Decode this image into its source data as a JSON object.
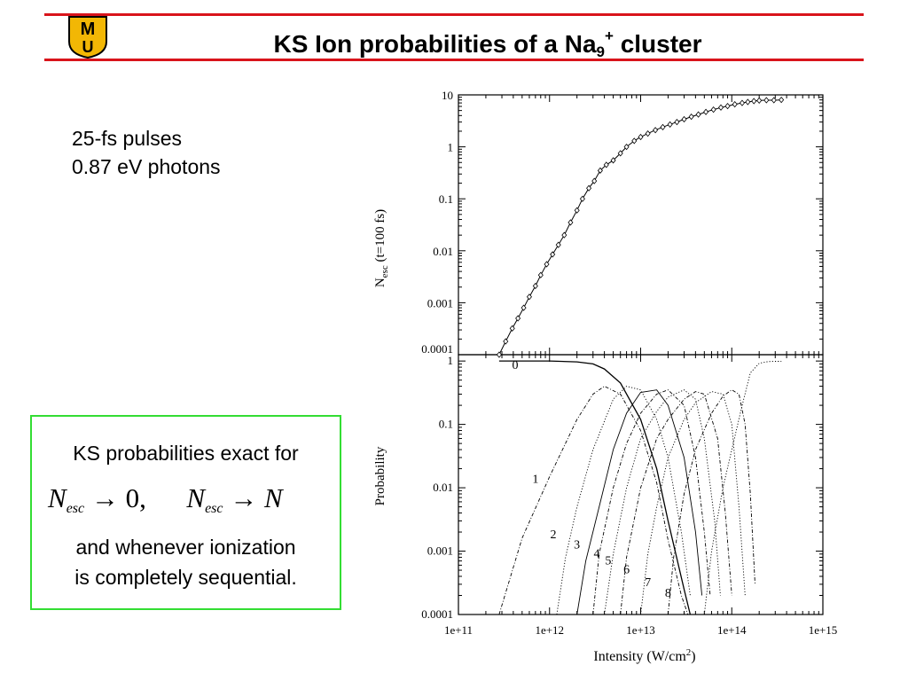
{
  "header": {
    "title_prefix": "KS Ion probabilities of a Na",
    "title_sub": "9",
    "title_sup": "+",
    "title_suffix": " cluster",
    "logo_top": "M",
    "logo_bottom": "U"
  },
  "info": {
    "line1": "25-fs pulses",
    "line2": "0.87 eV photons"
  },
  "note_box": {
    "line1": "KS probabilities exact for",
    "formula": {
      "n1": "N",
      "sub1": "esc",
      "limit1": "0,",
      "n2": "N",
      "sub2": "esc",
      "limit2": "N"
    },
    "line3": "and whenever ionization",
    "line4": "is completely sequential."
  },
  "colors": {
    "accent": "#d9141b",
    "box_border": "#33dd33",
    "logo_gold": "#f2b705"
  },
  "chart_data": [
    {
      "type": "line",
      "panel": "top",
      "xscale": "log",
      "yscale": "log",
      "xlim": [
        100000000000.0,
        1000000000000000.0
      ],
      "ylim": [
        0.0001,
        10
      ],
      "ylabel": "N",
      "ylabel_sub": "esc",
      "ylabel_suffix": " (t=100 fs)",
      "yticks": [
        "10",
        "1",
        "0.1",
        "0.01",
        "0.001",
        "0.0001"
      ],
      "series": [
        {
          "name": "Nesc",
          "markers": "diamond",
          "x": [
            280000000000.0,
            330000000000.0,
            390000000000.0,
            450000000000.0,
            520000000000.0,
            600000000000.0,
            700000000000.0,
            800000000000.0,
            930000000000.0,
            1080000000000.0,
            1250000000000.0,
            1450000000000.0,
            1700000000000.0,
            2000000000000.0,
            2300000000000.0,
            2700000000000.0,
            3100000000000.0,
            3600000000000.0,
            4200000000000.0,
            5000000000000.0,
            6000000000000.0,
            7000000000000.0,
            8500000000000.0,
            10000000000000.0,
            12000000000000.0,
            14500000000000.0,
            17500000000000.0,
            21000000000000.0,
            25000000000000.0,
            30000000000000.0,
            36000000000000.0,
            43000000000000.0,
            52000000000000.0,
            63000000000000.0,
            76000000000000.0,
            90000000000000.0,
            108000000000000.0,
            130000000000000.0,
            150000000000000.0,
            175000000000000.0,
            200000000000000.0,
            240000000000000.0,
            290000000000000.0,
            350000000000000.0
          ],
          "y": [
            0.0001,
            0.00018,
            0.00032,
            0.0005,
            0.0008,
            0.0013,
            0.0021,
            0.0034,
            0.0055,
            0.0085,
            0.013,
            0.02,
            0.035,
            0.06,
            0.1,
            0.16,
            0.22,
            0.35,
            0.45,
            0.55,
            0.75,
            1.0,
            1.3,
            1.55,
            1.8,
            2.1,
            2.4,
            2.7,
            3.0,
            3.4,
            3.8,
            4.2,
            4.7,
            5.2,
            5.7,
            6.1,
            6.6,
            7.0,
            7.3,
            7.6,
            7.8,
            7.9,
            7.9,
            8.0
          ]
        }
      ]
    },
    {
      "type": "line",
      "panel": "bottom",
      "xscale": "log",
      "yscale": "log",
      "xlim": [
        100000000000.0,
        1000000000000000.0
      ],
      "ylim": [
        0.0001,
        1
      ],
      "xlabel": "Intensity (W/cm",
      "xlabel_sup": "2",
      "xlabel_suffix": ")",
      "ylabel": "Probability",
      "yticks": [
        "1",
        "0.1",
        "0.01",
        "0.001",
        "0.0001"
      ],
      "xticks": [
        "1e+11",
        "1e+12",
        "1e+13",
        "1e+14",
        "1e+15"
      ],
      "series": [
        {
          "name": "0",
          "style": "solid",
          "x": [
            280000000000.0,
            1000000000000.0,
            2000000000000.0,
            3000000000000.0,
            4000000000000.0,
            6000000000000.0,
            10000000000000.0,
            15000000000000.0,
            20000000000000.0,
            30000000000000.0,
            35000000000000.0
          ],
          "y": [
            1,
            1,
            0.97,
            0.9,
            0.75,
            0.45,
            0.12,
            0.02,
            0.003,
            0.00025,
            0.0001
          ]
        },
        {
          "name": "1",
          "style": "dash-dot",
          "x": [
            280000000000.0,
            500000000000.0,
            1000000000000.0,
            2000000000000.0,
            3000000000000.0,
            4000000000000.0,
            6000000000000.0,
            10000000000000.0,
            15000000000000.0,
            20000000000000.0,
            28000000000000.0,
            33000000000000.0
          ],
          "y": [
            0.0001,
            0.0016,
            0.015,
            0.12,
            0.3,
            0.4,
            0.3,
            0.08,
            0.012,
            0.0015,
            0.0002,
            0.0001
          ]
        },
        {
          "name": "2",
          "style": "dotted",
          "x": [
            1200000000000.0,
            1500000000000.0,
            2000000000000.0,
            3000000000000.0,
            5000000000000.0,
            7000000000000.0,
            10000000000000.0,
            15000000000000.0,
            20000000000000.0,
            28000000000000.0,
            35000000000000.0
          ],
          "y": [
            0.0001,
            0.0008,
            0.005,
            0.04,
            0.25,
            0.4,
            0.35,
            0.12,
            0.03,
            0.002,
            0.0002
          ]
        },
        {
          "name": "3",
          "style": "solid-thin",
          "x": [
            2000000000000.0,
            2500000000000.0,
            3500000000000.0,
            5000000000000.0,
            7000000000000.0,
            10000000000000.0,
            15000000000000.0,
            20000000000000.0,
            30000000000000.0,
            40000000000000.0,
            47000000000000.0
          ],
          "y": [
            0.0001,
            0.0007,
            0.005,
            0.04,
            0.15,
            0.32,
            0.35,
            0.2,
            0.03,
            0.002,
            0.0002
          ]
        },
        {
          "name": "4",
          "style": "dash-dot",
          "x": [
            3000000000000.0,
            3500000000000.0,
            5000000000000.0,
            7000000000000.0,
            10000000000000.0,
            15000000000000.0,
            20000000000000.0,
            30000000000000.0,
            40000000000000.0,
            50000000000000.0,
            58000000000000.0
          ],
          "y": [
            0.0001,
            0.0009,
            0.01,
            0.05,
            0.15,
            0.3,
            0.35,
            0.2,
            0.03,
            0.002,
            0.0002
          ]
        },
        {
          "name": "5",
          "style": "dotted",
          "x": [
            4000000000000.0,
            5000000000000.0,
            7000000000000.0,
            10000000000000.0,
            15000000000000.0,
            20000000000000.0,
            30000000000000.0,
            40000000000000.0,
            50000000000000.0,
            65000000000000.0,
            75000000000000.0
          ],
          "y": [
            0.0001,
            0.0009,
            0.01,
            0.06,
            0.16,
            0.27,
            0.35,
            0.25,
            0.06,
            0.003,
            0.0002
          ]
        },
        {
          "name": "6",
          "style": "dash-dot",
          "x": [
            6000000000000.0,
            7000000000000.0,
            10000000000000.0,
            15000000000000.0,
            20000000000000.0,
            30000000000000.0,
            40000000000000.0,
            50000000000000.0,
            70000000000000.0,
            85000000000000.0,
            100000000000000.0
          ],
          "y": [
            0.0001,
            0.0008,
            0.01,
            0.06,
            0.12,
            0.25,
            0.33,
            0.3,
            0.06,
            0.004,
            0.0002
          ]
        },
        {
          "name": "7",
          "style": "dotted",
          "x": [
            10000000000000.0,
            12000000000000.0,
            15000000000000.0,
            20000000000000.0,
            30000000000000.0,
            40000000000000.0,
            60000000000000.0,
            80000000000000.0,
            100000000000000.0,
            120000000000000.0,
            140000000000000.0
          ],
          "y": [
            0.0001,
            0.0009,
            0.005,
            0.03,
            0.12,
            0.22,
            0.33,
            0.3,
            0.1,
            0.005,
            0.0002
          ]
        },
        {
          "name": "8",
          "style": "dash-dot",
          "x": [
            20000000000000.0,
            23000000000000.0,
            30000000000000.0,
            40000000000000.0,
            60000000000000.0,
            80000000000000.0,
            100000000000000.0,
            120000000000000.0,
            140000000000000.0,
            160000000000000.0,
            180000000000000.0
          ],
          "y": [
            0.0001,
            0.0008,
            0.008,
            0.04,
            0.15,
            0.28,
            0.35,
            0.3,
            0.1,
            0.008,
            0.0003
          ]
        },
        {
          "name": "9",
          "style": "dotted",
          "label_shown": false,
          "x": [
            50000000000000.0,
            60000000000000.0,
            80000000000000.0,
            100000000000000.0,
            130000000000000.0,
            160000000000000.0,
            200000000000000.0,
            250000000000000.0,
            300000000000000.0,
            350000000000000.0
          ],
          "y": [
            0.0001,
            0.001,
            0.01,
            0.04,
            0.2,
            0.65,
            0.92,
            0.98,
            0.99,
            0.99
          ]
        }
      ],
      "curve_labels": [
        "0",
        "1",
        "2",
        "3",
        "4",
        "5",
        "6",
        "7",
        "8"
      ]
    }
  ]
}
